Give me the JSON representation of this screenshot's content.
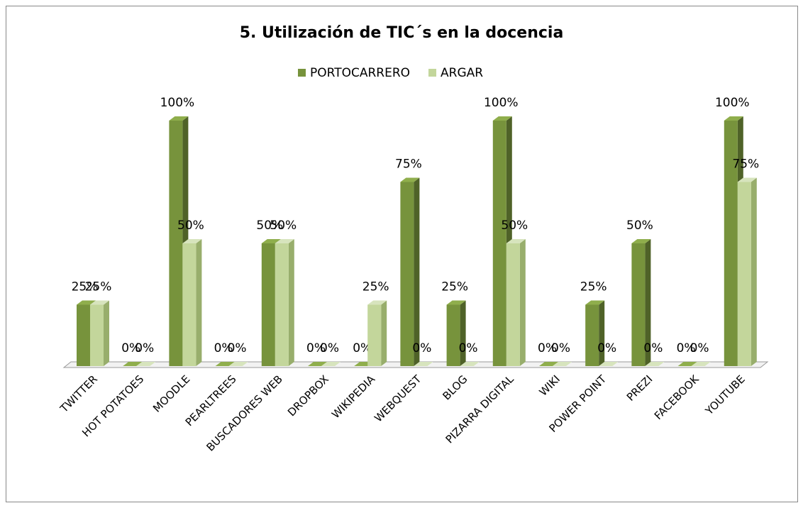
{
  "chart_data": {
    "type": "bar3d",
    "title": "5. Utilización de TIC´s en la docencia",
    "categories": [
      "TWITTER",
      "HOT POTATOES",
      "MOODLE",
      "PEARLTREES",
      "BUSCADORES WEB",
      "DROPBOX",
      "WIKIPEDIA",
      "WEBQUEST",
      "BLOG",
      "PIZARRA DIGITAL",
      "WIKI",
      "POWER POINT",
      "PREZI",
      "FACEBOOK",
      "YOUTUBE"
    ],
    "series": [
      {
        "name": "PORTOCARRERO",
        "color": "#77933c",
        "side": "#4f6228",
        "top": "#8fae4c",
        "values": [
          25,
          0,
          100,
          0,
          50,
          0,
          0,
          75,
          25,
          100,
          0,
          25,
          50,
          0,
          100
        ],
        "value_labels": [
          "25%",
          "0%",
          "100%",
          "0%",
          "50%",
          "0%",
          "0%",
          "75%",
          "25%",
          "100%",
          "0%",
          "25%",
          "50%",
          "0%",
          "100%"
        ]
      },
      {
        "name": "ARGAR",
        "color": "#c3d69b",
        "side": "#98ae6c",
        "top": "#d7e4bd",
        "values": [
          25,
          0,
          50,
          0,
          50,
          0,
          25,
          0,
          0,
          50,
          0,
          0,
          0,
          0,
          75
        ],
        "value_labels": [
          "25%",
          "0%",
          "50%",
          "0%",
          "50%",
          "0%",
          "25%",
          "0%",
          "0%",
          "50%",
          "0%",
          "0%",
          "0%",
          "0%",
          "75%"
        ]
      }
    ],
    "ylim": [
      0,
      100
    ],
    "legend": "top"
  }
}
